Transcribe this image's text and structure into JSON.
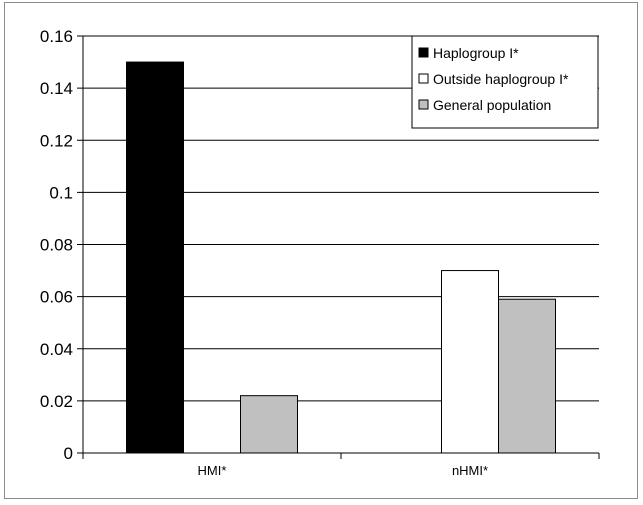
{
  "chart_data": {
    "type": "bar",
    "title": "",
    "xlabel": "",
    "ylabel": "",
    "categories": [
      "HMI*",
      "nHMI*"
    ],
    "ylim": [
      0,
      0.16
    ],
    "yticks": [
      "0",
      "0.02",
      "0.04",
      "0.06",
      "0.08",
      "0.1",
      "0.12",
      "0.14",
      "0.16"
    ],
    "grid": true,
    "legend_position": "top-right",
    "series": [
      {
        "name": "Haplogroup I*",
        "color": "#000000",
        "values": [
          0.15,
          null
        ]
      },
      {
        "name": "Outside haplogroup I*",
        "color": "#ffffff",
        "values": [
          null,
          0.07
        ]
      },
      {
        "name": "General population",
        "color": "#c0c0c0",
        "values": [
          0.022,
          0.059
        ]
      }
    ]
  }
}
